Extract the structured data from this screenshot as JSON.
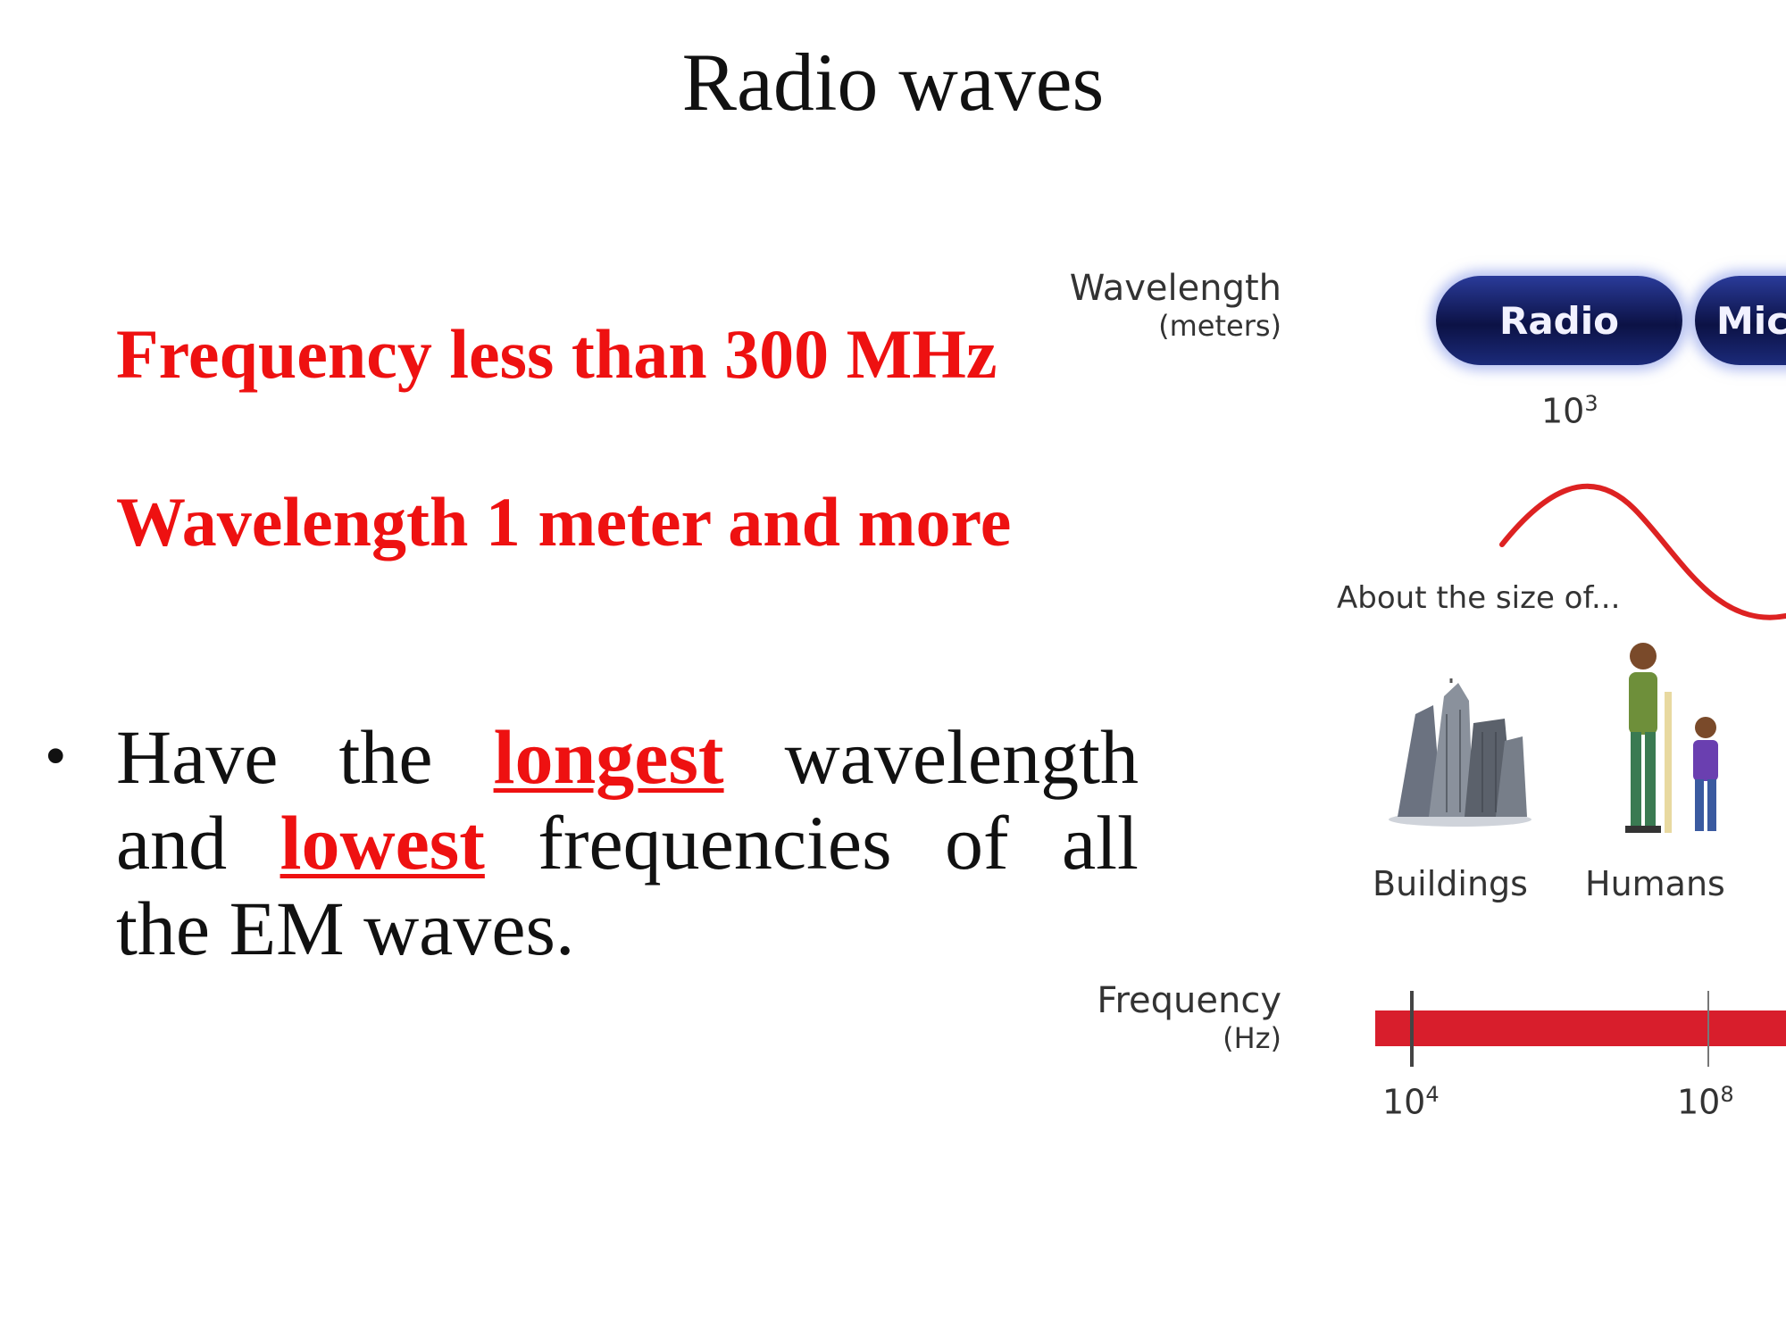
{
  "title": "Radio waves",
  "facts": {
    "frequency": "Frequency less than 300 MHz",
    "wavelength": "Wavelength 1 meter and more"
  },
  "bullet": {
    "line1": [
      "Have",
      "the",
      "longest",
      "wavelength"
    ],
    "line2": [
      "and",
      "lowest",
      "frequencies",
      "of",
      "all"
    ],
    "line3": "the EM waves.",
    "emphasis": [
      "longest",
      "lowest"
    ]
  },
  "diagram": {
    "wavelength_label": "Wavelength",
    "wavelength_unit": "(meters)",
    "bands": [
      "Radio",
      "Mic"
    ],
    "wavelength_tick_base": "10",
    "wavelength_tick_exp": "3",
    "size_prompt": "About the size of...",
    "objects": [
      "Buildings",
      "Humans"
    ],
    "frequency_label": "Frequency",
    "frequency_unit": "(Hz)",
    "frequency_ticks": [
      {
        "base": "10",
        "exp": "4"
      },
      {
        "base": "10",
        "exp": "8"
      }
    ],
    "colors": {
      "band_fill": "#0c1245",
      "band_glow": "#7888e6",
      "wave": "#dd2222",
      "frequency_bar": "#d81e2c",
      "emphasis_text": "#ee1111"
    }
  }
}
